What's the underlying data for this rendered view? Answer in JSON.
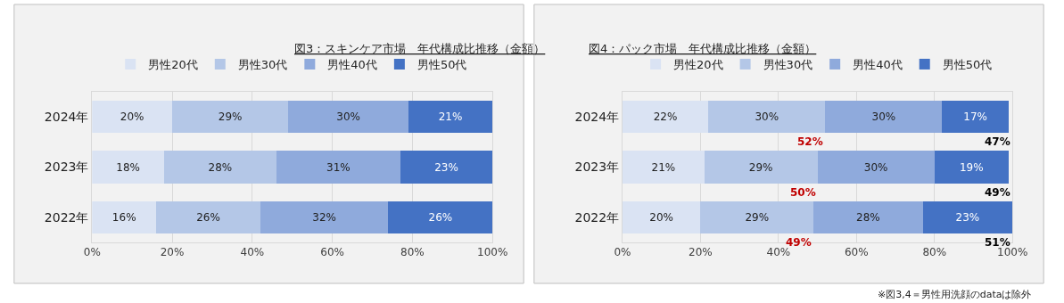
{
  "chart_data": [
    {
      "type": "bar",
      "title": "図3：スキンケア市場　年代構成比推移（金額）",
      "orientation": "horizontal",
      "stacked": true,
      "categories": [
        "2024年",
        "2023年",
        "2022年"
      ],
      "series": [
        {
          "name": "男性20代",
          "color": "#dae3f3",
          "values": [
            20,
            18,
            16
          ],
          "value_labels": [
            "20%",
            "18%",
            "16%"
          ]
        },
        {
          "name": "男性30代",
          "color": "#b4c7e7",
          "values": [
            29,
            28,
            26
          ],
          "value_labels": [
            "29%",
            "28%",
            "26%"
          ]
        },
        {
          "name": "男性40代",
          "color": "#8faadc",
          "values": [
            30,
            31,
            32
          ],
          "value_labels": [
            "30%",
            "31%",
            "32%"
          ]
        },
        {
          "name": "男性50代",
          "color": "#4472c4",
          "values": [
            21,
            23,
            26
          ],
          "value_labels": [
            "21%",
            "23%",
            "26%"
          ]
        }
      ],
      "xlim": [
        0,
        100
      ],
      "xticks": [
        {
          "value": 0,
          "label": "0%"
        },
        {
          "value": 20,
          "label": "20%"
        },
        {
          "value": 40,
          "label": "40%"
        },
        {
          "value": 60,
          "label": "60%"
        },
        {
          "value": 80,
          "label": "80%"
        },
        {
          "value": 100,
          "label": "100%"
        }
      ],
      "grid": "x",
      "legend": "top"
    },
    {
      "type": "bar",
      "title": "図4：パック市場　年代構成比推移（金額）",
      "orientation": "horizontal",
      "stacked": true,
      "categories": [
        "2024年",
        "2023年",
        "2022年"
      ],
      "series": [
        {
          "name": "男性20代",
          "color": "#dae3f3",
          "values": [
            22,
            21,
            20
          ],
          "value_labels": [
            "22%",
            "21%",
            "20%"
          ]
        },
        {
          "name": "男性30代",
          "color": "#b4c7e7",
          "values": [
            30,
            29,
            29
          ],
          "value_labels": [
            "30%",
            "29%",
            "29%"
          ]
        },
        {
          "name": "男性40代",
          "color": "#8faadc",
          "values": [
            30,
            30,
            28
          ],
          "value_labels": [
            "30%",
            "30%",
            "28%"
          ]
        },
        {
          "name": "男性50代",
          "color": "#4472c4",
          "values": [
            17,
            19,
            23
          ],
          "value_labels": [
            "17%",
            "19%",
            "23%"
          ]
        }
      ],
      "xlim": [
        0,
        100
      ],
      "xticks": [
        {
          "value": 0,
          "label": "0%"
        },
        {
          "value": 20,
          "label": "20%"
        },
        {
          "value": 40,
          "label": "40%"
        },
        {
          "value": 60,
          "label": "60%"
        },
        {
          "value": 80,
          "label": "80%"
        },
        {
          "value": 100,
          "label": "100%"
        }
      ],
      "grid": "x",
      "legend": "top",
      "annotations": [
        {
          "text": "52%",
          "x": 52,
          "y": "2024年"
        },
        {
          "text": "47%",
          "x": 100,
          "y": "2024年"
        },
        {
          "text": "50%",
          "x": 50,
          "y": "2023年"
        },
        {
          "text": "49%",
          "x": 100,
          "y": "2023年"
        },
        {
          "text": "49%",
          "x": 49,
          "y": "2022年"
        },
        {
          "text": "51%",
          "x": 100,
          "y": "2022年"
        },
        "※図3,4＝男性用洗顔のdataは除外"
      ]
    }
  ]
}
